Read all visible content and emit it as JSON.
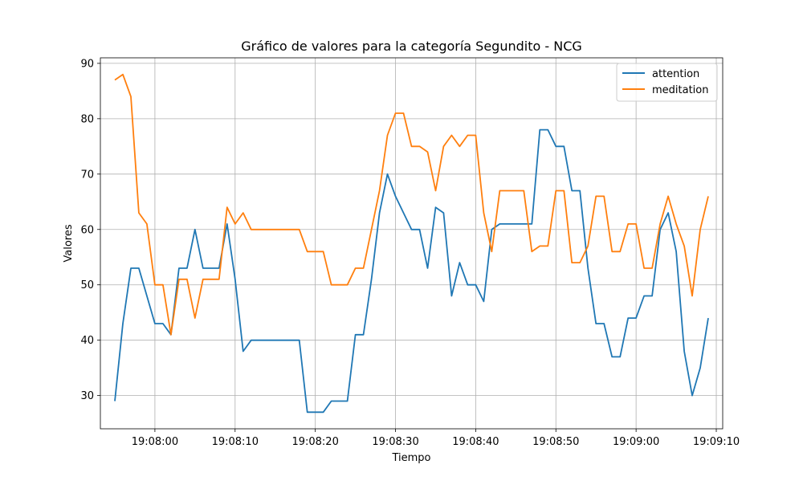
{
  "chart_data": {
    "type": "line",
    "title": "Gráfico de valores para la categoría Segundito - NCG",
    "xlabel": "Tiempo",
    "ylabel": "Valores",
    "x_tick_labels": [
      "19:08:00",
      "19:08:10",
      "19:08:20",
      "19:08:30",
      "19:08:40",
      "19:08:50",
      "19:09:00",
      "19:09:10"
    ],
    "y_ticks": [
      30,
      40,
      50,
      60,
      70,
      80,
      90
    ],
    "xlim": [
      "19:07:53.2",
      "19:09:10.8"
    ],
    "ylim": [
      24,
      91
    ],
    "grid": true,
    "legend_position": "top-right",
    "x": [
      "19:07:55",
      "19:07:56",
      "19:07:57",
      "19:07:58",
      "19:07:59",
      "19:08:00",
      "19:08:01",
      "19:08:02",
      "19:08:03",
      "19:08:04",
      "19:08:05",
      "19:08:06",
      "19:08:07",
      "19:08:08",
      "19:08:09",
      "19:08:10",
      "19:08:11",
      "19:08:12",
      "19:08:13",
      "19:08:14",
      "19:08:15",
      "19:08:16",
      "19:08:17",
      "19:08:18",
      "19:08:19",
      "19:08:20",
      "19:08:21",
      "19:08:22",
      "19:08:23",
      "19:08:24",
      "19:08:25",
      "19:08:26",
      "19:08:27",
      "19:08:28",
      "19:08:29",
      "19:08:30",
      "19:08:31",
      "19:08:32",
      "19:08:33",
      "19:08:34",
      "19:08:35",
      "19:08:36",
      "19:08:37",
      "19:08:38",
      "19:08:39",
      "19:08:40",
      "19:08:41",
      "19:08:42",
      "19:08:43",
      "19:08:44",
      "19:08:45",
      "19:08:46",
      "19:08:47",
      "19:08:48",
      "19:08:49",
      "19:08:50",
      "19:08:51",
      "19:08:52",
      "19:08:53",
      "19:08:54",
      "19:08:55",
      "19:08:56",
      "19:08:57",
      "19:08:58",
      "19:08:59",
      "19:09:00",
      "19:09:01",
      "19:09:02",
      "19:09:03",
      "19:09:04",
      "19:09:05",
      "19:09:06",
      "19:09:07",
      "19:09:08",
      "19:09:09"
    ],
    "series": [
      {
        "name": "attention",
        "color": "#1f77b4",
        "values": [
          29,
          43,
          53,
          53,
          48,
          43,
          43,
          41,
          53,
          53,
          60,
          53,
          53,
          53,
          61,
          51,
          38,
          40,
          40,
          40,
          40,
          40,
          40,
          40,
          27,
          27,
          27,
          29,
          29,
          29,
          41,
          41,
          51,
          63,
          70,
          66,
          63,
          60,
          60,
          53,
          64,
          63,
          48,
          54,
          50,
          50,
          47,
          60,
          61,
          61,
          61,
          61,
          61,
          78,
          78,
          75,
          75,
          67,
          67,
          53,
          43,
          43,
          37,
          37,
          44,
          44,
          48,
          48,
          60,
          63,
          56,
          38,
          30,
          35,
          44
        ]
      },
      {
        "name": "meditation",
        "color": "#ff7f0e",
        "values": [
          87,
          88,
          84,
          63,
          61,
          50,
          50,
          41,
          51,
          51,
          44,
          51,
          51,
          51,
          64,
          61,
          63,
          60,
          60,
          60,
          60,
          60,
          60,
          60,
          56,
          56,
          56,
          50,
          50,
          50,
          53,
          53,
          60,
          67,
          77,
          81,
          81,
          75,
          75,
          74,
          67,
          75,
          77,
          75,
          77,
          77,
          63,
          56,
          67,
          67,
          67,
          67,
          56,
          57,
          57,
          67,
          67,
          54,
          54,
          57,
          66,
          66,
          56,
          56,
          61,
          61,
          53,
          53,
          61,
          66,
          61,
          57,
          48,
          60,
          66
        ]
      }
    ]
  }
}
